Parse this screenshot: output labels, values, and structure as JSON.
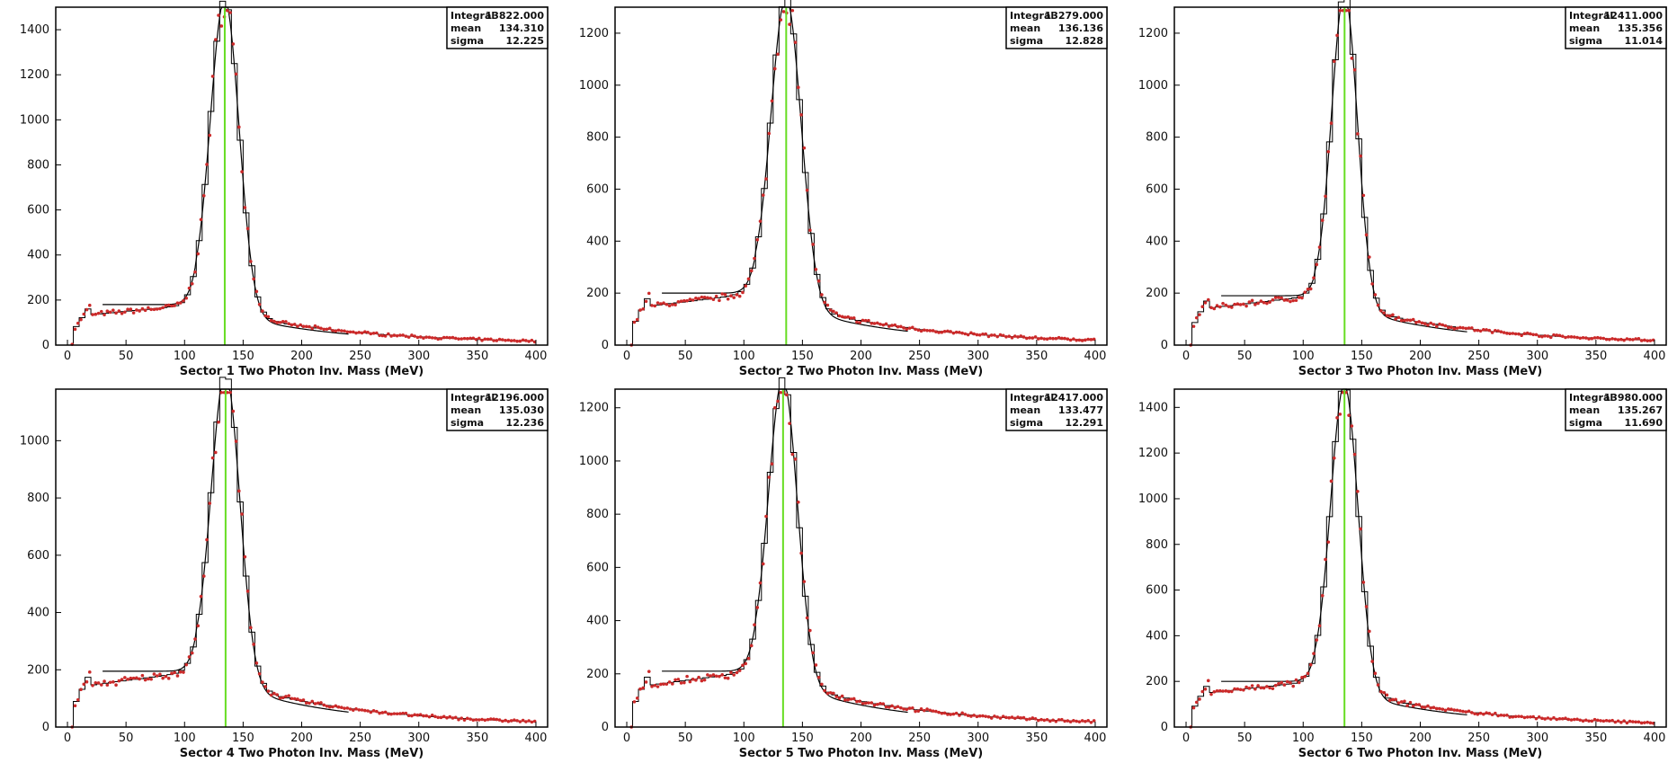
{
  "chart_data": [
    {
      "type": "histogram",
      "xlabel": "Sector 1 Two Photon Inv. Mass (MeV)",
      "xlim": [
        -10,
        410
      ],
      "ylim": [
        0,
        1500
      ],
      "xticks": [
        0,
        50,
        100,
        150,
        200,
        250,
        300,
        350,
        400
      ],
      "yticks": [
        0,
        200,
        400,
        600,
        800,
        1000,
        1200,
        1400
      ],
      "stats": [
        {
          "label": "Integral",
          "value": "13822.000"
        },
        {
          "label": "mean",
          "value": "134.310"
        },
        {
          "label": "sigma",
          "value": "12.225"
        }
      ],
      "mean": 134.31,
      "sigma": 12.225,
      "peak": 1390,
      "bg": 180,
      "fit_curve_start": 30,
      "fit_curve_end": 240,
      "colors": {
        "hist": "#000000",
        "data": "#cc2a2a",
        "mean_line": "#66dd22"
      }
    },
    {
      "type": "histogram",
      "xlabel": "Sector 2 Two Photon Inv. Mass (MeV)",
      "xlim": [
        -10,
        410
      ],
      "ylim": [
        0,
        1300
      ],
      "xticks": [
        0,
        50,
        100,
        150,
        200,
        250,
        300,
        350,
        400
      ],
      "yticks": [
        0,
        200,
        400,
        600,
        800,
        1000,
        1200
      ],
      "stats": [
        {
          "label": "Integral",
          "value": "13279.000"
        },
        {
          "label": "mean",
          "value": "136.136"
        },
        {
          "label": "sigma",
          "value": "12.828"
        }
      ],
      "mean": 136.136,
      "sigma": 12.828,
      "peak": 1180,
      "bg": 200,
      "fit_curve_start": 30,
      "fit_curve_end": 240,
      "colors": {
        "hist": "#000000",
        "data": "#cc2a2a",
        "mean_line": "#66dd22"
      }
    },
    {
      "type": "histogram",
      "xlabel": "Sector 3 Two Photon Inv. Mass (MeV)",
      "xlim": [
        -10,
        410
      ],
      "ylim": [
        0,
        1300
      ],
      "xticks": [
        0,
        50,
        100,
        150,
        200,
        250,
        300,
        350,
        400
      ],
      "yticks": [
        0,
        200,
        400,
        600,
        800,
        1000,
        1200
      ],
      "stats": [
        {
          "label": "Integral",
          "value": "12411.000"
        },
        {
          "label": "mean",
          "value": "135.356"
        },
        {
          "label": "sigma",
          "value": "11.014"
        }
      ],
      "mean": 135.356,
      "sigma": 11.014,
      "peak": 1200,
      "bg": 190,
      "fit_curve_start": 30,
      "fit_curve_end": 240,
      "colors": {
        "hist": "#000000",
        "data": "#cc2a2a",
        "mean_line": "#66dd22"
      }
    },
    {
      "type": "histogram",
      "xlabel": "Sector 4 Two Photon Inv. Mass (MeV)",
      "xlim": [
        -10,
        410
      ],
      "ylim": [
        0,
        1180
      ],
      "xticks": [
        0,
        50,
        100,
        150,
        200,
        250,
        300,
        350,
        400
      ],
      "yticks": [
        0,
        200,
        400,
        600,
        800,
        1000
      ],
      "stats": [
        {
          "label": "Integral",
          "value": "12196.000"
        },
        {
          "label": "mean",
          "value": "135.030"
        },
        {
          "label": "sigma",
          "value": "12.236"
        }
      ],
      "mean": 135.03,
      "sigma": 12.236,
      "peak": 1080,
      "bg": 195,
      "fit_curve_start": 30,
      "fit_curve_end": 240,
      "colors": {
        "hist": "#000000",
        "data": "#cc2a2a",
        "mean_line": "#66dd22"
      }
    },
    {
      "type": "histogram",
      "xlabel": "Sector 5 Two Photon Inv. Mass (MeV)",
      "xlim": [
        -10,
        410
      ],
      "ylim": [
        0,
        1270
      ],
      "xticks": [
        0,
        50,
        100,
        150,
        200,
        250,
        300,
        350,
        400
      ],
      "yticks": [
        0,
        200,
        400,
        600,
        800,
        1000,
        1200
      ],
      "stats": [
        {
          "label": "Integral",
          "value": "12417.000"
        },
        {
          "label": "mean",
          "value": "133.477"
        },
        {
          "label": "sigma",
          "value": "12.291"
        }
      ],
      "mean": 133.477,
      "sigma": 12.291,
      "peak": 1140,
      "bg": 210,
      "fit_curve_start": 30,
      "fit_curve_end": 240,
      "colors": {
        "hist": "#000000",
        "data": "#cc2a2a",
        "mean_line": "#66dd22"
      }
    },
    {
      "type": "histogram",
      "xlabel": "Sector 6 Two Photon Inv. Mass (MeV)",
      "xlim": [
        -10,
        410
      ],
      "ylim": [
        0,
        1480
      ],
      "xticks": [
        0,
        50,
        100,
        150,
        200,
        250,
        300,
        350,
        400
      ],
      "yticks": [
        0,
        200,
        400,
        600,
        800,
        1000,
        1200,
        1400
      ],
      "stats": [
        {
          "label": "Integral",
          "value": "13980.000"
        },
        {
          "label": "mean",
          "value": "135.267"
        },
        {
          "label": "sigma",
          "value": "11.690"
        }
      ],
      "mean": 135.267,
      "sigma": 11.69,
      "peak": 1340,
      "bg": 200,
      "fit_curve_start": 30,
      "fit_curve_end": 240,
      "colors": {
        "hist": "#000000",
        "data": "#cc2a2a",
        "mean_line": "#66dd22"
      }
    }
  ]
}
